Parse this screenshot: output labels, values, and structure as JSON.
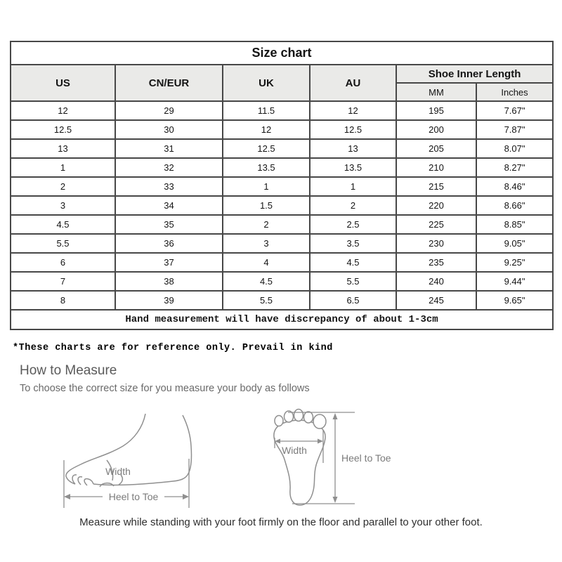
{
  "table": {
    "title": "Size chart",
    "columns": [
      "US",
      "CN/EUR",
      "UK",
      "AU"
    ],
    "inner_length_header": "Shoe Inner Length",
    "sub_columns": [
      "MM",
      "Inches"
    ],
    "rows": [
      [
        "12",
        "29",
        "11.5",
        "12",
        "195",
        "7.67\""
      ],
      [
        "12.5",
        "30",
        "12",
        "12.5",
        "200",
        "7.87\""
      ],
      [
        "13",
        "31",
        "12.5",
        "13",
        "205",
        "8.07\""
      ],
      [
        "1",
        "32",
        "13.5",
        "13.5",
        "210",
        "8.27\""
      ],
      [
        "2",
        "33",
        "1",
        "1",
        "215",
        "8.46\""
      ],
      [
        "3",
        "34",
        "1.5",
        "2",
        "220",
        "8.66\""
      ],
      [
        "4.5",
        "35",
        "2",
        "2.5",
        "225",
        "8.85\""
      ],
      [
        "5.5",
        "36",
        "3",
        "3.5",
        "230",
        "9.05\""
      ],
      [
        "6",
        "37",
        "4",
        "4.5",
        "235",
        "9.25\""
      ],
      [
        "7",
        "38",
        "4.5",
        "5.5",
        "240",
        "9.44\""
      ],
      [
        "8",
        "39",
        "5.5",
        "6.5",
        "245",
        "9.65\""
      ]
    ],
    "footer": "Hand measurement will have discrepancy of about 1-3cm"
  },
  "notes": {
    "reference": "*These charts are for reference only. Prevail in kind"
  },
  "measure": {
    "heading": "How to Measure",
    "subheading": "To choose the correct size for you measure your body as follows",
    "side_width_label": "Width",
    "side_length_label": "Heel to Toe",
    "top_width_label": "Width",
    "top_length_label": "Heel to Toe",
    "caption": "Measure while standing with your foot firmly on the floor and parallel to your other foot."
  },
  "colors": {
    "table_border": "#474747",
    "header_bg": "#eaeae8",
    "diagram_stroke": "#8f8f8f",
    "muted_text": "#5a5a5a"
  }
}
